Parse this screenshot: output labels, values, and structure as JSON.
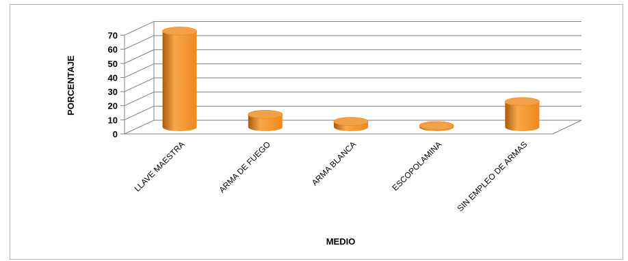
{
  "chart_data": {
    "type": "bar",
    "style": "3d-cylinder",
    "categories": [
      "LLAVE MAESTRA",
      "ARMA DE FUEGO",
      "ARMA BLANCA",
      "ESCOPOLAMINA",
      "SIN EMPLEO DE ARMAS"
    ],
    "values": [
      68,
      9,
      4,
      1,
      18
    ],
    "xlabel": "MEDIO",
    "ylabel": "PORCENTAJE",
    "ylim": [
      0,
      70
    ],
    "yticks": [
      0,
      10,
      20,
      30,
      40,
      50,
      60,
      70
    ],
    "grid": true,
    "legend": "none",
    "colors": {
      "bar_light": "#f7a64a",
      "bar_mid": "#ee8a1f",
      "bar_dark": "#a85b0e",
      "bar_top": "#f3a04a",
      "grid": "#7f7f7f",
      "floor": "#d9d9d9"
    }
  }
}
